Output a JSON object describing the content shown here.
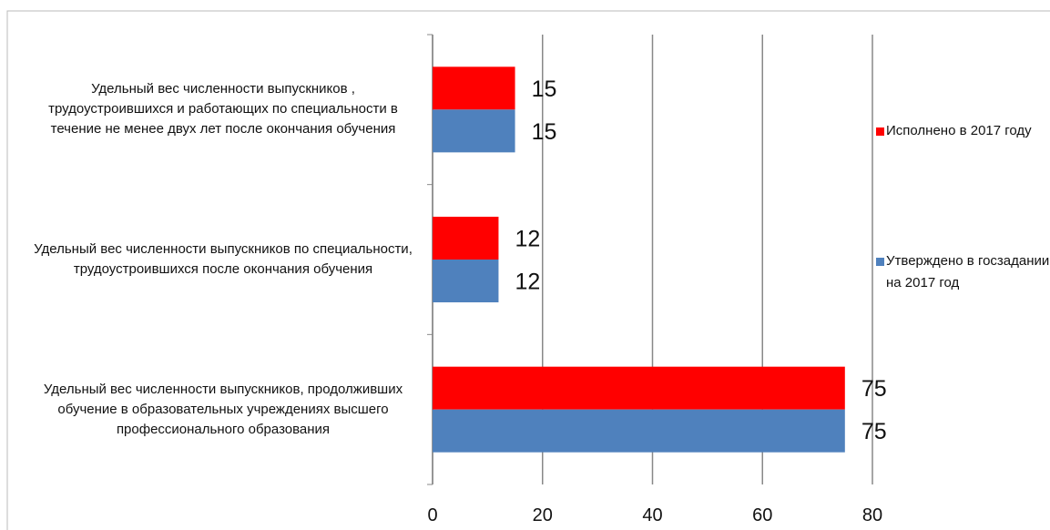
{
  "chart_data": {
    "type": "bar",
    "orientation": "horizontal",
    "categories": [
      "Удельный вес  численности выпускников , трудоустроившихся и работающих по специальности в течение не менее двух лет после окончания обучения",
      "Удельный вес численности выпускников по специальности, трудоустроившихся после окончания обучения",
      "Удельный вес численности выпускников, продолживших обучение в образовательных учреждениях высшего профессионального образования"
    ],
    "series": [
      {
        "name": "Исполнено в 2017 году",
        "color": "#ff0000",
        "values": [
          15,
          12,
          75
        ]
      },
      {
        "name": "Утверждено в госзадании на 2017 год",
        "color": "#4f81bd",
        "values": [
          15,
          12,
          75
        ]
      }
    ],
    "xlim": [
      0,
      80
    ],
    "xticks": [
      0,
      20,
      40,
      60,
      80
    ],
    "grid": true,
    "legend": "right"
  }
}
